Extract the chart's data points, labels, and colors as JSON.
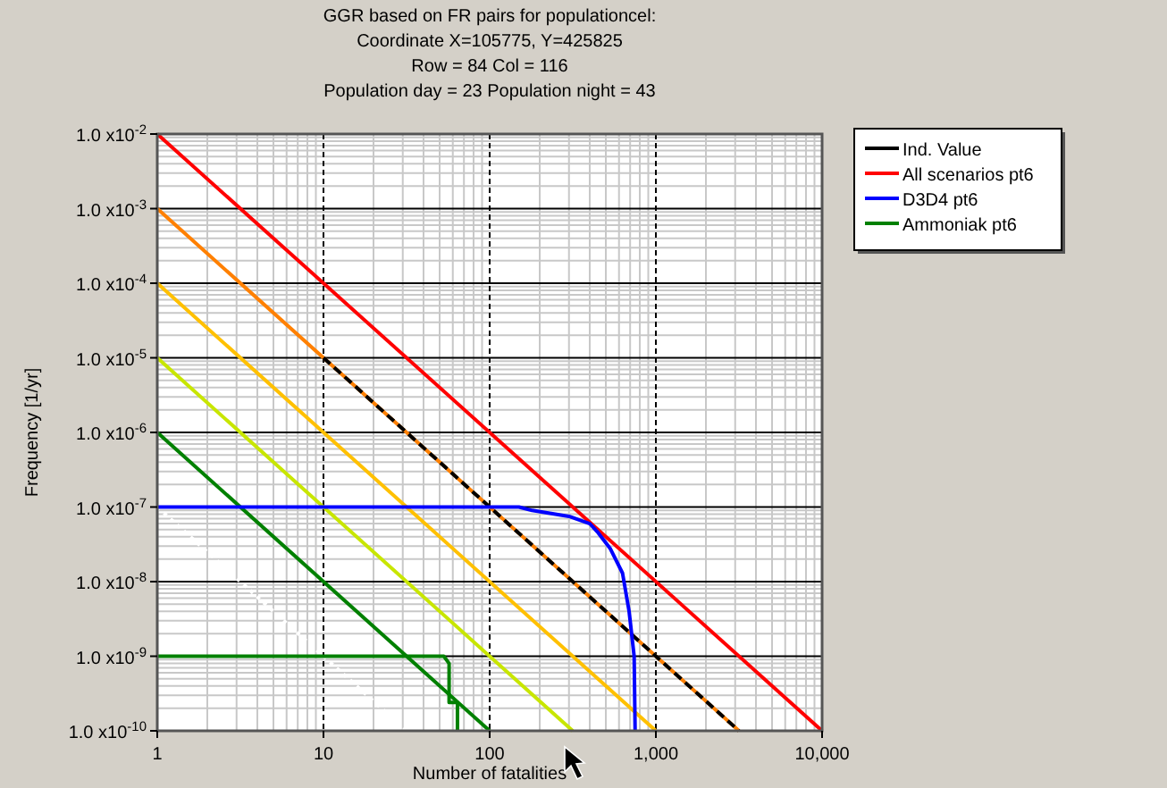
{
  "chart_data": {
    "type": "line",
    "title": "GGR based on FR pairs for populationcel:\nCoordinate X=105775, Y=425825\nRow = 84 Col = 116\nPopulation day = 23  Population night = 43",
    "xlabel": "Number of fatalities",
    "ylabel": "Frequency [1/yr]",
    "log": "xy",
    "grid": true,
    "legend": "top right",
    "xlim": [
      1,
      10000
    ],
    "ylim": [
      1e-10,
      0.01
    ],
    "xticks": [
      {
        "value": 1,
        "label": "1"
      },
      {
        "value": 10,
        "label": "10"
      },
      {
        "value": 100,
        "label": "100"
      },
      {
        "value": 1000,
        "label": "1,000"
      },
      {
        "value": 10000,
        "label": "10,000"
      }
    ],
    "yticks": [
      {
        "value": 1e-10,
        "label": "1.0 x10$^{-10}$"
      },
      {
        "value": 1e-09,
        "label": "1.0 x10$^{-9}$"
      },
      {
        "value": 1e-08,
        "label": "1.0 x10$^{-8}$"
      },
      {
        "value": 1e-07,
        "label": "1.0 x10$^{-7}$"
      },
      {
        "value": 1e-06,
        "label": "1.0 x10$^{-6}$"
      },
      {
        "value": 1e-05,
        "label": "1.0 x10$^{-5}$"
      },
      {
        "value": 0.0001,
        "label": "1.0 x10$^{-4}$"
      },
      {
        "value": 0.001,
        "label": "1.0 x10$^{-3}$"
      },
      {
        "value": 0.01,
        "label": "1.0 x10$^{-2}$"
      }
    ],
    "series": [
      {
        "name": "Ind. Value",
        "color": "#000000",
        "line_style": "dashed",
        "x": [
          10,
          100,
          1000,
          3162
        ],
        "values": [
          1e-05,
          1e-07,
          1e-09,
          1e-10
        ]
      },
      {
        "name": "All scenarios pt6",
        "color": "#ff0000",
        "x": [
          1,
          10000
        ],
        "values": [
          0.01,
          1e-10
        ]
      },
      {
        "name": "D3D4 pt6",
        "color": "#0000ff",
        "x": [
          1,
          150,
          180,
          300,
          400,
          450,
          530,
          630,
          690,
          740,
          750
        ],
        "values": [
          1e-07,
          1e-07,
          9e-08,
          7.5e-08,
          6e-08,
          4.5e-08,
          2.8e-08,
          1.3e-08,
          4e-09,
          1e-09,
          1e-10
        ]
      },
      {
        "name": "Ammoniak pt6",
        "color": "#008000",
        "x": [
          1,
          53,
          57,
          57,
          64,
          64
        ],
        "values": [
          1e-09,
          1e-09,
          8e-10,
          2.4e-10,
          2.4e-10,
          1e-10
        ]
      },
      {
        "color": "#ff8000",
        "x": [
          1,
          3162
        ],
        "values": [
          0.001,
          1e-10
        ]
      },
      {
        "color": "#ffc000",
        "x": [
          1,
          1000
        ],
        "values": [
          0.0001,
          1e-10
        ]
      },
      {
        "color": "#c8e600",
        "x": [
          1,
          316
        ],
        "values": [
          1e-05,
          1e-10
        ]
      },
      {
        "color": "#008000",
        "x": [
          1,
          100
        ],
        "values": [
          1e-06,
          1e-10
        ]
      },
      {
        "color": "#ffffff",
        "line_style": "dotted",
        "x": [
          1,
          31.6
        ],
        "values": [
          1e-07,
          1e-10
        ]
      }
    ]
  }
}
